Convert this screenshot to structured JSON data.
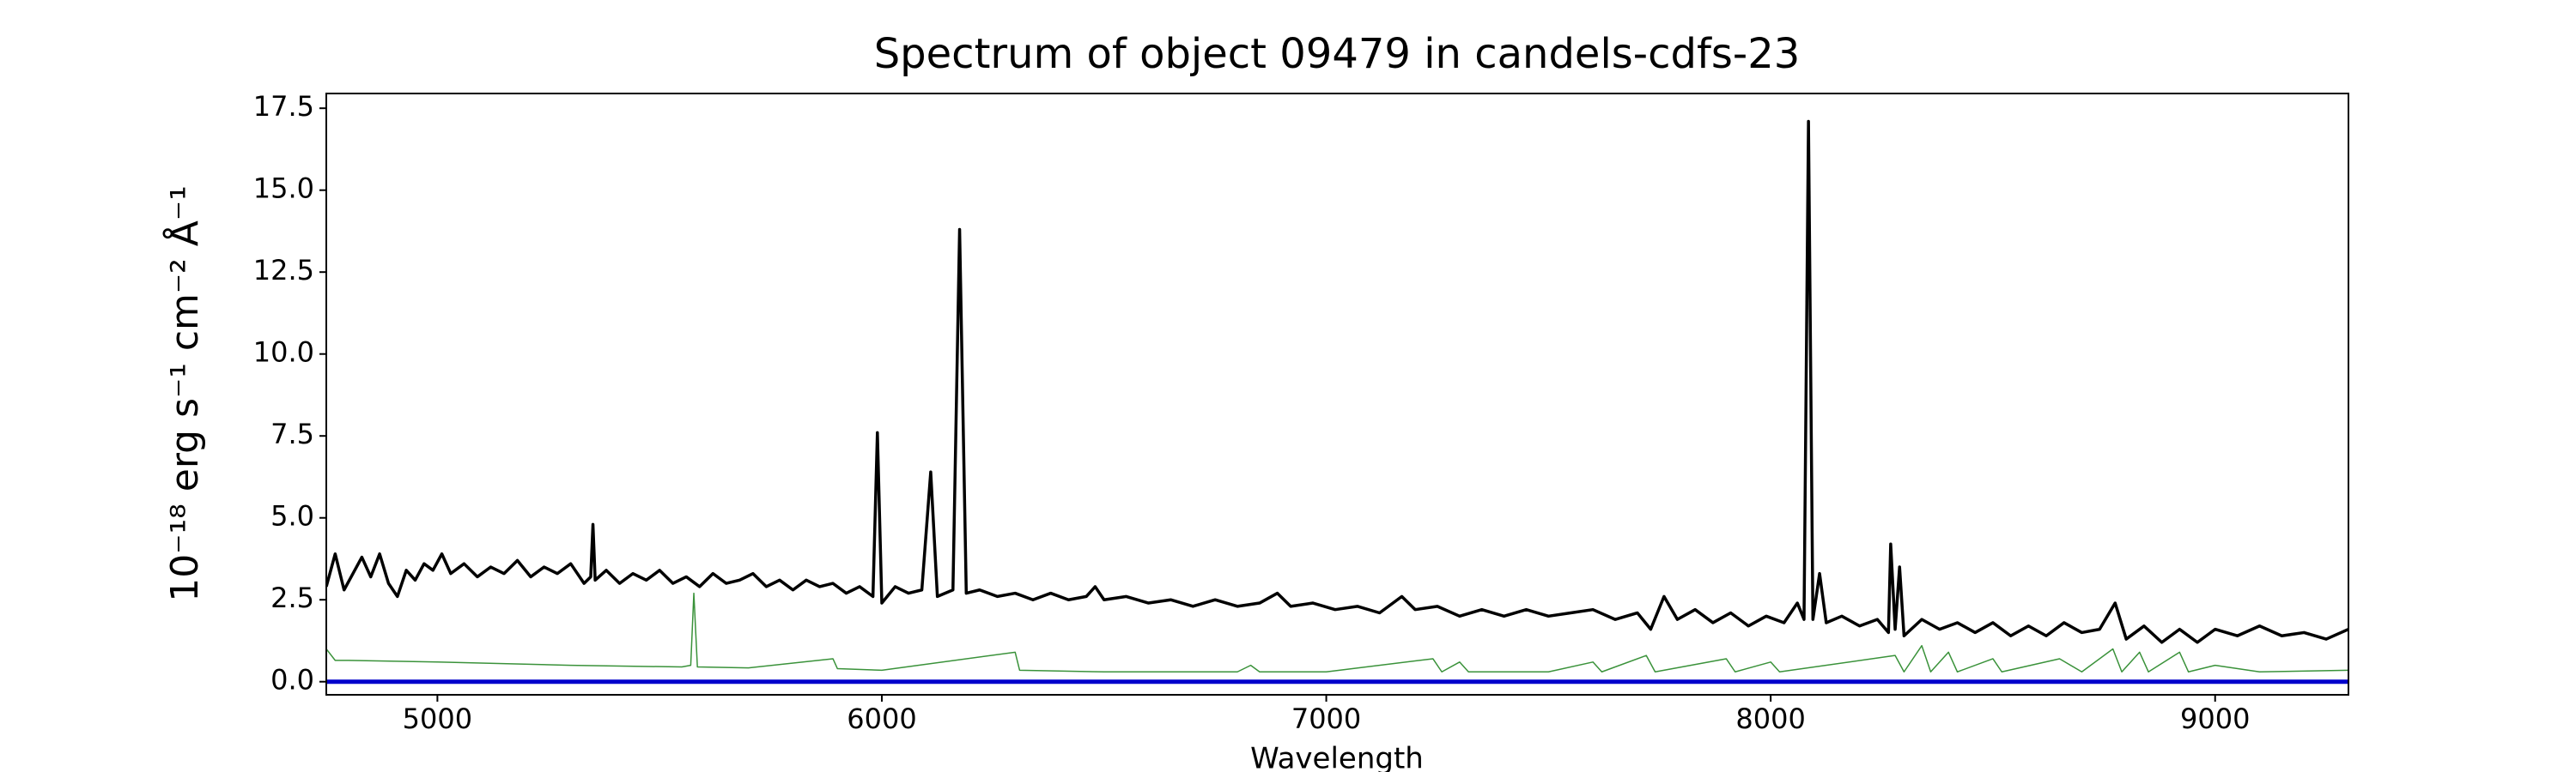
{
  "chart_data": {
    "type": "line",
    "title": "Spectrum of object 09479 in candels-cdfs-23",
    "x_label": "Wavelength",
    "y_label": "10⁻¹⁸ erg s⁻¹ cm⁻² Å⁻¹",
    "xlim": [
      4750,
      9300
    ],
    "ylim": [
      -0.4,
      17.95
    ],
    "xticks": [
      5000,
      6000,
      7000,
      8000,
      9000
    ],
    "yticks": [
      {
        "value": 0,
        "label": "0.0"
      },
      {
        "value": 2.5,
        "label": "2.5"
      },
      {
        "value": 5,
        "label": "5.0"
      },
      {
        "value": 7.5,
        "label": "7.5"
      },
      {
        "value": 10,
        "label": "10.0"
      },
      {
        "value": 12.5,
        "label": "12.5"
      },
      {
        "value": 15,
        "label": "15.0"
      },
      {
        "value": 17.5,
        "label": "17.5"
      }
    ],
    "series": [
      {
        "color": "#000000",
        "width": 3.5,
        "x": [
          4750,
          4770,
          4790,
          4810,
          4830,
          4850,
          4870,
          4890,
          4910,
          4930,
          4950,
          4970,
          4990,
          5010,
          5030,
          5060,
          5090,
          5120,
          5150,
          5180,
          5210,
          5240,
          5270,
          5300,
          5330,
          5345,
          5350,
          5355,
          5380,
          5410,
          5440,
          5470,
          5500,
          5530,
          5560,
          5590,
          5620,
          5650,
          5680,
          5710,
          5740,
          5770,
          5800,
          5830,
          5860,
          5890,
          5920,
          5950,
          5980,
          5990,
          6000,
          6030,
          6060,
          6090,
          6110,
          6125,
          6160,
          6175,
          6190,
          6220,
          6260,
          6300,
          6340,
          6380,
          6420,
          6460,
          6480,
          6500,
          6550,
          6600,
          6650,
          6700,
          6750,
          6800,
          6850,
          6890,
          6920,
          6970,
          7020,
          7070,
          7120,
          7170,
          7200,
          7250,
          7300,
          7350,
          7400,
          7450,
          7500,
          7550,
          7600,
          7650,
          7700,
          7730,
          7760,
          7790,
          7830,
          7870,
          7910,
          7950,
          7990,
          8030,
          8060,
          8075,
          8085,
          8095,
          8110,
          8125,
          8160,
          8200,
          8240,
          8265,
          8270,
          8280,
          8290,
          8300,
          8340,
          8380,
          8420,
          8460,
          8500,
          8540,
          8580,
          8620,
          8660,
          8700,
          8740,
          8775,
          8800,
          8840,
          8880,
          8920,
          8960,
          9000,
          9050,
          9100,
          9150,
          9200,
          9250,
          9300
        ],
        "values": [
          2.9,
          3.9,
          2.8,
          3.3,
          3.8,
          3.2,
          3.9,
          3.0,
          2.6,
          3.4,
          3.1,
          3.6,
          3.4,
          3.9,
          3.3,
          3.6,
          3.2,
          3.5,
          3.3,
          3.7,
          3.2,
          3.5,
          3.3,
          3.6,
          3.0,
          3.2,
          4.8,
          3.1,
          3.4,
          3.0,
          3.3,
          3.1,
          3.4,
          3.0,
          3.2,
          2.9,
          3.3,
          3.0,
          3.1,
          3.3,
          2.9,
          3.1,
          2.8,
          3.1,
          2.9,
          3.0,
          2.7,
          2.9,
          2.6,
          7.6,
          2.4,
          2.9,
          2.7,
          2.8,
          6.4,
          2.6,
          2.8,
          13.8,
          2.7,
          2.8,
          2.6,
          2.7,
          2.5,
          2.7,
          2.5,
          2.6,
          2.9,
          2.5,
          2.6,
          2.4,
          2.5,
          2.3,
          2.5,
          2.3,
          2.4,
          2.7,
          2.3,
          2.4,
          2.2,
          2.3,
          2.1,
          2.6,
          2.2,
          2.3,
          2.0,
          2.2,
          2.0,
          2.2,
          2.0,
          2.1,
          2.2,
          1.9,
          2.1,
          1.6,
          2.6,
          1.9,
          2.2,
          1.8,
          2.1,
          1.7,
          2.0,
          1.8,
          2.4,
          1.9,
          17.1,
          1.9,
          3.3,
          1.8,
          2.0,
          1.7,
          1.9,
          1.5,
          4.2,
          1.6,
          3.5,
          1.4,
          1.9,
          1.6,
          1.8,
          1.5,
          1.8,
          1.4,
          1.7,
          1.4,
          1.8,
          1.5,
          1.6,
          2.4,
          1.3,
          1.7,
          1.2,
          1.6,
          1.2,
          1.6,
          1.4,
          1.7,
          1.4,
          1.5,
          1.3,
          1.6
        ]
      },
      {
        "color": "#3a923a",
        "width": 1.5,
        "x": [
          4750,
          4770,
          4800,
          5000,
          5300,
          5550,
          5570,
          5577,
          5585,
          5700,
          5890,
          5900,
          6000,
          6300,
          6310,
          6500,
          6800,
          6830,
          6850,
          7000,
          7240,
          7260,
          7300,
          7320,
          7500,
          7600,
          7620,
          7720,
          7740,
          7900,
          7920,
          8000,
          8020,
          8280,
          8300,
          8340,
          8360,
          8400,
          8420,
          8500,
          8520,
          8650,
          8700,
          8770,
          8790,
          8830,
          8850,
          8920,
          8940,
          9000,
          9100,
          9300
        ],
        "values": [
          1.0,
          0.65,
          0.65,
          0.6,
          0.5,
          0.45,
          0.5,
          2.7,
          0.45,
          0.42,
          0.7,
          0.4,
          0.35,
          0.9,
          0.35,
          0.3,
          0.3,
          0.5,
          0.3,
          0.3,
          0.7,
          0.3,
          0.6,
          0.3,
          0.3,
          0.6,
          0.3,
          0.8,
          0.3,
          0.7,
          0.3,
          0.6,
          0.3,
          0.8,
          0.3,
          1.1,
          0.3,
          0.9,
          0.3,
          0.7,
          0.3,
          0.7,
          0.3,
          1.0,
          0.3,
          0.9,
          0.3,
          0.9,
          0.3,
          0.5,
          0.3,
          0.35
        ]
      },
      {
        "color": "#0000cc",
        "width": 5,
        "x": [
          4750,
          9300
        ],
        "values": [
          0,
          0
        ]
      }
    ]
  }
}
